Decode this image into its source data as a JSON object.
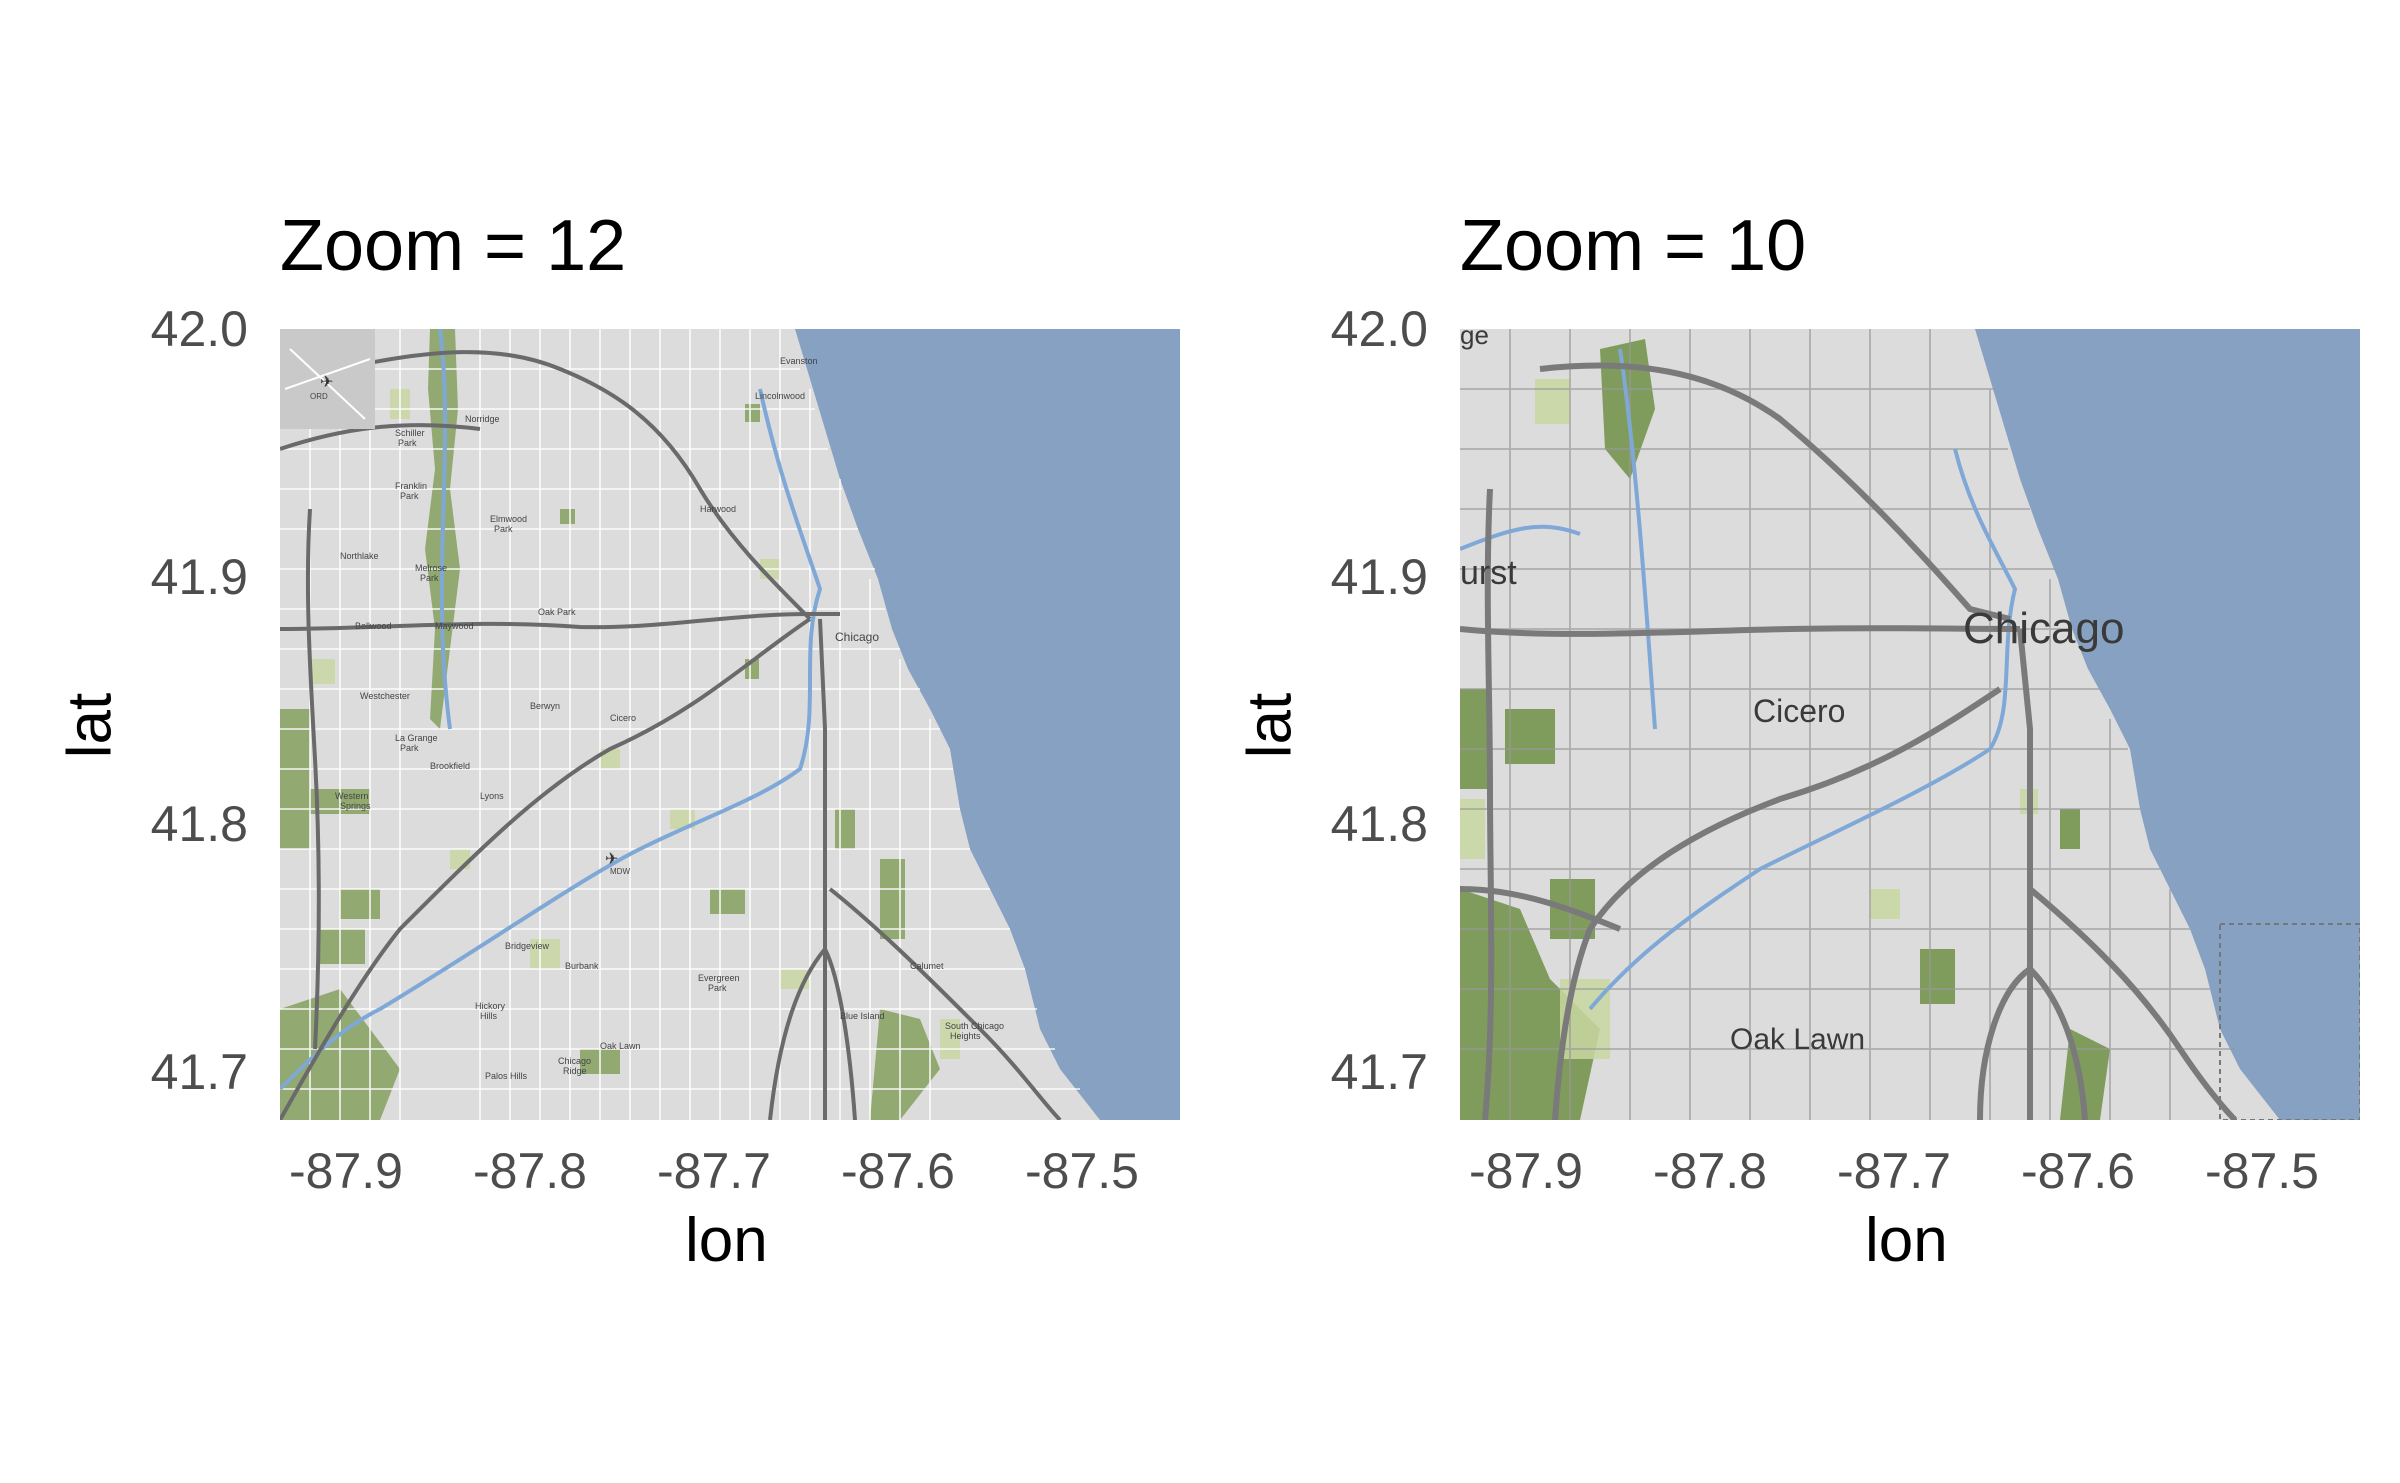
{
  "panels": [
    {
      "title": "Zoom = 12",
      "xlabel": "lon",
      "ylabel": "lat",
      "xticks": [
        "-87.9",
        "-87.8",
        "-87.7",
        "-87.6",
        "-87.5"
      ],
      "yticks": [
        "42.0",
        "41.9",
        "41.8",
        "41.7"
      ],
      "labels": [
        "Chicago",
        "Cicero",
        "Oak Lawn",
        "Evergreen Park",
        "Norridge",
        "Berwyn",
        "Oak Park",
        "Westchester",
        "La Grange Park",
        "Brookfield",
        "Western Springs",
        "Lyons",
        "Bridgeview",
        "Burbank",
        "Hickory Hills",
        "Palos Hills",
        "Chicago Ridge",
        "Elmwood Park",
        "Melrose Park",
        "Maywood",
        "Bellwood",
        "Northlake",
        "Franklin Park",
        "Schiller Park",
        "Harwood Heights",
        "Lincolnwood",
        "Evanston",
        "Calumet",
        "Blue Island",
        "South Chicago Heights",
        "ORD",
        "MDW"
      ]
    },
    {
      "title": "Zoom = 10",
      "xlabel": "lon",
      "ylabel": "lat",
      "xticks": [
        "-87.9",
        "-87.8",
        "-87.7",
        "-87.6",
        "-87.5"
      ],
      "yticks": [
        "42.0",
        "41.9",
        "41.8",
        "41.7"
      ],
      "labels": [
        "Chicago",
        "Cicero",
        "Oak Lawn",
        "urst",
        "ge"
      ]
    }
  ],
  "colors": {
    "lake": "#86a1c1",
    "land": "#dcdcdc",
    "park": "#7a9a4e",
    "road": "#6a6a6a",
    "river": "#7fa8d6"
  }
}
